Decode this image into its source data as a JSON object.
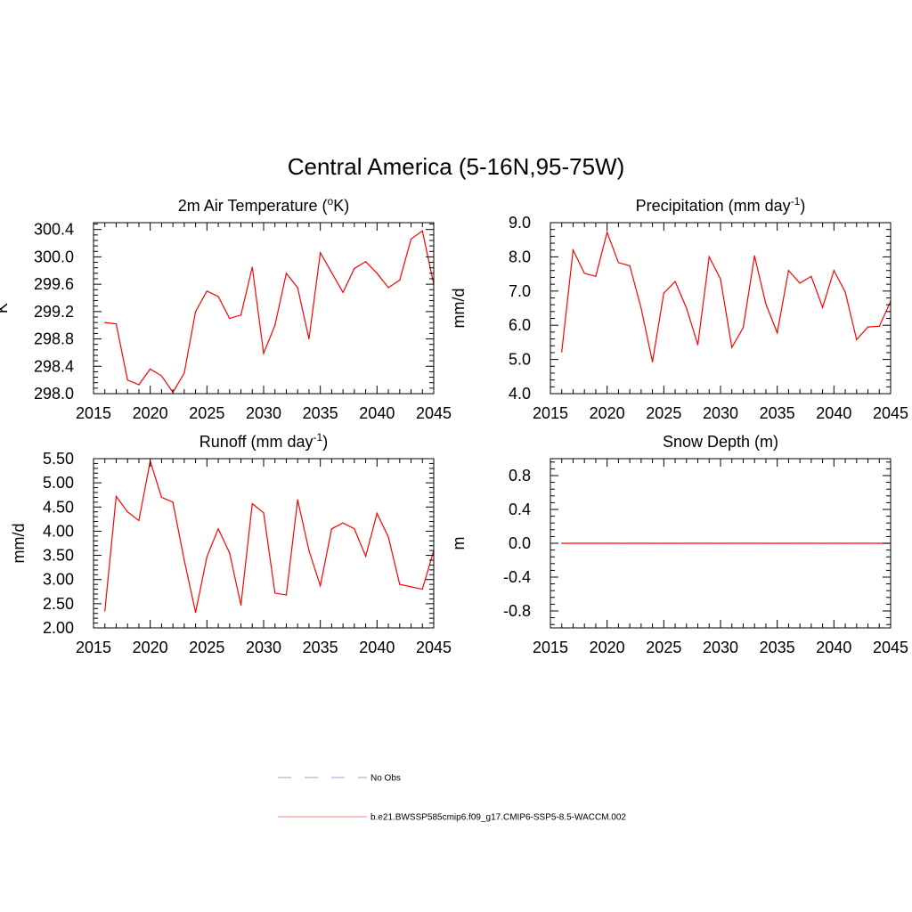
{
  "figure_title": "Central America (5-16N,95-75W)",
  "legend": [
    {
      "label": "No Obs",
      "color": "#9999dd",
      "style": "dashed"
    },
    {
      "label": "b.e21.BWSSP585cmip6.f09_g17.CMIP6-SSP5-8.5-WACCM.002",
      "color": "#ff8080",
      "style": "solid"
    }
  ],
  "chart_data": [
    {
      "type": "line",
      "title": "2m Air Temperature (",
      "title_sup": "o",
      "title_after": "K)",
      "ylabel": "K",
      "xlim": [
        2015,
        2045
      ],
      "ylim": [
        298.0,
        300.5
      ],
      "xticks": [
        "2015",
        "2020",
        "2025",
        "2030",
        "2035",
        "2040",
        "2045"
      ],
      "yticks": [
        "298.0",
        "298.4",
        "298.8",
        "299.2",
        "299.6",
        "300.0",
        "300.4"
      ],
      "series": [
        {
          "color": "#ff0000",
          "x": [
            2016,
            2017,
            2018,
            2019,
            2020,
            2021,
            2022,
            2023,
            2024,
            2025,
            2026,
            2027,
            2028,
            2029,
            2030,
            2031,
            2032,
            2033,
            2034,
            2035,
            2036,
            2037,
            2038,
            2039,
            2040,
            2041,
            2042,
            2043,
            2044,
            2045
          ],
          "values": [
            299.04,
            299.02,
            298.2,
            298.13,
            298.36,
            298.26,
            298.02,
            298.3,
            299.2,
            299.5,
            299.42,
            299.1,
            299.15,
            299.85,
            298.59,
            299.0,
            299.76,
            299.55,
            298.8,
            300.06,
            299.77,
            299.48,
            299.83,
            299.93,
            299.76,
            299.55,
            299.66,
            300.26,
            300.38,
            299.6
          ]
        }
      ]
    },
    {
      "type": "line",
      "title": "Precipitation (mm day",
      "title_sup": "-1",
      "title_after": ")",
      "ylabel": "mm/d",
      "xlim": [
        2015,
        2045
      ],
      "ylim": [
        4.0,
        9.0
      ],
      "xticks": [
        "2015",
        "2020",
        "2025",
        "2030",
        "2035",
        "2040",
        "2045"
      ],
      "yticks": [
        "4.0",
        "5.0",
        "6.0",
        "7.0",
        "8.0",
        "9.0"
      ],
      "series": [
        {
          "color": "#ff0000",
          "x": [
            2016,
            2017,
            2018,
            2019,
            2020,
            2021,
            2022,
            2023,
            2024,
            2025,
            2026,
            2027,
            2028,
            2029,
            2030,
            2031,
            2032,
            2033,
            2034,
            2035,
            2036,
            2037,
            2038,
            2039,
            2040,
            2041,
            2042,
            2043,
            2044,
            2045
          ],
          "values": [
            5.22,
            8.2,
            7.52,
            7.43,
            8.72,
            7.83,
            7.74,
            6.5,
            4.93,
            6.94,
            7.28,
            6.5,
            5.43,
            8.0,
            7.35,
            5.35,
            5.93,
            8.03,
            6.62,
            5.78,
            7.6,
            7.23,
            7.43,
            6.52,
            7.6,
            6.97,
            5.58,
            5.95,
            5.97,
            6.7
          ]
        }
      ]
    },
    {
      "type": "line",
      "title": "Runoff (mm day",
      "title_sup": "-1",
      "title_after": ")",
      "ylabel": "mm/d",
      "xlim": [
        2015,
        2045
      ],
      "ylim": [
        2.0,
        5.5
      ],
      "xticks": [
        "2015",
        "2020",
        "2025",
        "2030",
        "2035",
        "2040",
        "2045"
      ],
      "yticks": [
        "2.00",
        "2.50",
        "3.00",
        "3.50",
        "4.00",
        "4.50",
        "5.00",
        "5.50"
      ],
      "series": [
        {
          "color": "#ff0000",
          "x": [
            2016,
            2017,
            2018,
            2019,
            2020,
            2021,
            2022,
            2023,
            2024,
            2025,
            2026,
            2027,
            2028,
            2029,
            2030,
            2031,
            2032,
            2033,
            2034,
            2035,
            2036,
            2037,
            2038,
            2039,
            2040,
            2041,
            2042,
            2043,
            2044,
            2045
          ],
          "values": [
            2.35,
            4.72,
            4.4,
            4.22,
            5.45,
            4.7,
            4.6,
            3.4,
            2.32,
            3.47,
            4.05,
            3.55,
            2.47,
            4.57,
            4.38,
            2.72,
            2.68,
            4.65,
            3.6,
            2.87,
            4.05,
            4.17,
            4.05,
            3.48,
            4.37,
            3.88,
            2.9,
            2.85,
            2.8,
            3.6
          ]
        }
      ]
    },
    {
      "type": "line",
      "title": "Snow Depth (m)",
      "title_sup": "",
      "title_after": "",
      "ylabel": "m",
      "xlim": [
        2015,
        2045
      ],
      "ylim": [
        -1.0,
        1.0
      ],
      "xticks": [
        "2015",
        "2020",
        "2025",
        "2030",
        "2035",
        "2040",
        "2045"
      ],
      "yticks": [
        "-0.8",
        "-0.4",
        "0.0",
        "0.4",
        "0.8"
      ],
      "series": [
        {
          "color": "#ff0000",
          "x": [
            2016,
            2017,
            2018,
            2019,
            2020,
            2021,
            2022,
            2023,
            2024,
            2025,
            2026,
            2027,
            2028,
            2029,
            2030,
            2031,
            2032,
            2033,
            2034,
            2035,
            2036,
            2037,
            2038,
            2039,
            2040,
            2041,
            2042,
            2043,
            2044,
            2045
          ],
          "values": [
            0,
            0,
            0,
            0,
            0,
            0,
            0,
            0,
            0,
            0,
            0,
            0,
            0,
            0,
            0,
            0,
            0,
            0,
            0,
            0,
            0,
            0,
            0,
            0,
            0,
            0,
            0,
            0,
            0,
            0
          ]
        }
      ]
    }
  ]
}
